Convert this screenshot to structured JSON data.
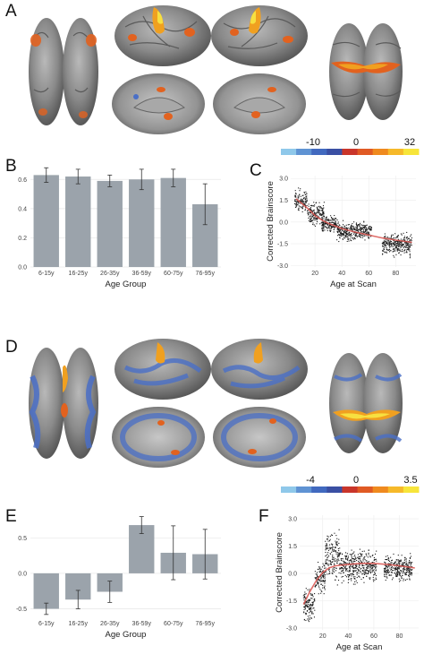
{
  "panels": {
    "A": "A",
    "B": "B",
    "C": "C",
    "D": "D",
    "E": "E",
    "F": "F"
  },
  "colorbar_top": {
    "ticks": [
      "-10",
      "0",
      "32"
    ],
    "colors": [
      "#8fc8ea",
      "#5f93d3",
      "#4169bf",
      "#3a4fa3",
      "#c9352a",
      "#e05a24",
      "#ef8a1f",
      "#f6b92a",
      "#f7e53a"
    ]
  },
  "colorbar_bottom": {
    "ticks": [
      "-4",
      "0",
      "3.5"
    ],
    "colors": [
      "#8fc8ea",
      "#5f93d3",
      "#4169bf",
      "#3a4fa3",
      "#c9352a",
      "#e05a24",
      "#ef8a1f",
      "#f6b92a",
      "#f7e53a"
    ]
  },
  "chart_data": [
    {
      "id": "B",
      "type": "bar",
      "categories": [
        "6-15y",
        "16-25y",
        "26-35y",
        "36-59y",
        "60-75y",
        "76-95y"
      ],
      "values": [
        0.63,
        0.62,
        0.59,
        0.6,
        0.61,
        0.43
      ],
      "errors": [
        0.05,
        0.05,
        0.04,
        0.07,
        0.06,
        0.14
      ],
      "xlabel": "Age Group",
      "ylabel": "",
      "ylim": [
        0,
        0.7
      ],
      "yticks": [
        "0.0",
        "0.2",
        "0.4",
        "0.6"
      ],
      "bar_color": "#9ba3ab"
    },
    {
      "id": "C",
      "type": "scatter",
      "xlabel": "Age at Scan",
      "ylabel": "Corrected Brainscore",
      "xlim": [
        2,
        95
      ],
      "ylim": [
        -3.1,
        3.2
      ],
      "xticks": [
        "20",
        "40",
        "60",
        "80"
      ],
      "yticks": [
        "3.0",
        "1.5",
        "0.0",
        "-1.5",
        "-3.0"
      ],
      "fit_color": "#d9534f",
      "fit_curve": [
        [
          6,
          1.6
        ],
        [
          10,
          1.3
        ],
        [
          15,
          0.9
        ],
        [
          20,
          0.45
        ],
        [
          25,
          0.15
        ],
        [
          30,
          -0.1
        ],
        [
          40,
          -0.45
        ],
        [
          50,
          -0.7
        ],
        [
          60,
          -0.9
        ],
        [
          70,
          -1.1
        ],
        [
          80,
          -1.25
        ],
        [
          92,
          -1.4
        ]
      ],
      "clusters": [
        {
          "x": [
            5,
            14
          ],
          "y": [
            0.5,
            2.5
          ]
        },
        {
          "x": [
            14,
            27
          ],
          "y": [
            -0.5,
            1.6
          ]
        },
        {
          "x": [
            25,
            36
          ],
          "y": [
            -0.9,
            0.6
          ]
        },
        {
          "x": [
            36,
            62
          ],
          "y": [
            -1.5,
            0.2
          ]
        },
        {
          "x": [
            70,
            92
          ],
          "y": [
            -2.6,
            -0.5
          ]
        }
      ]
    },
    {
      "id": "E",
      "type": "bar",
      "categories": [
        "6-15y",
        "16-25y",
        "26-35y",
        "36-59y",
        "60-75y",
        "76-95y"
      ],
      "values": [
        -0.5,
        -0.37,
        -0.26,
        0.68,
        0.29,
        0.27
      ],
      "errors": [
        0.08,
        0.13,
        0.15,
        0.12,
        0.38,
        0.35
      ],
      "xlabel": "Age Group",
      "ylabel": "",
      "ylim": [
        -0.62,
        0.82
      ],
      "yticks": [
        "0.5",
        "0.0",
        "-0.5"
      ],
      "bar_color": "#9ba3ab"
    },
    {
      "id": "F",
      "type": "scatter",
      "xlabel": "Age at Scan",
      "ylabel": "Corrected Brainscore",
      "xlim": [
        2,
        95
      ],
      "ylim": [
        -3.1,
        3.2
      ],
      "xticks": [
        "20",
        "40",
        "60",
        "80"
      ],
      "yticks": [
        "3.0",
        "1.5",
        "0.0",
        "-1.5",
        "-3.0"
      ],
      "fit_color": "#d9534f",
      "fit_curve": [
        [
          5,
          -1.7
        ],
        [
          10,
          -1.0
        ],
        [
          15,
          -0.4
        ],
        [
          20,
          0.05
        ],
        [
          25,
          0.3
        ],
        [
          30,
          0.42
        ],
        [
          40,
          0.5
        ],
        [
          50,
          0.55
        ],
        [
          60,
          0.55
        ],
        [
          70,
          0.5
        ],
        [
          80,
          0.42
        ],
        [
          92,
          0.3
        ]
      ],
      "clusters": [
        {
          "x": [
            5,
            14
          ],
          "y": [
            -2.9,
            -0.5
          ]
        },
        {
          "x": [
            14,
            22
          ],
          "y": [
            -1.5,
            1.0
          ]
        },
        {
          "x": [
            22,
            34
          ],
          "y": [
            -0.8,
            2.6
          ]
        },
        {
          "x": [
            34,
            62
          ],
          "y": [
            -0.8,
            1.6
          ]
        },
        {
          "x": [
            68,
            90
          ],
          "y": [
            -0.6,
            1.2
          ]
        }
      ]
    }
  ]
}
